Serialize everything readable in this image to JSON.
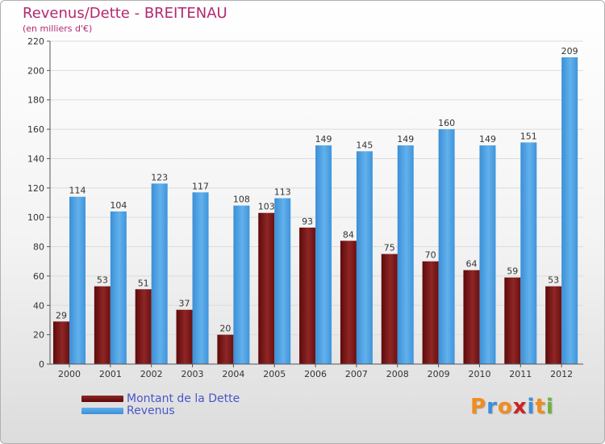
{
  "header": {
    "title": "Revenus/Dette - BREITENAU",
    "subtitle": "(en milliers d'€)"
  },
  "chart_data": {
    "type": "bar",
    "categories": [
      "2000",
      "2001",
      "2002",
      "2003",
      "2004",
      "2005",
      "2006",
      "2007",
      "2008",
      "2009",
      "2010",
      "2011",
      "2012"
    ],
    "series": [
      {
        "name": "Montant de la Dette",
        "color": "#7a1212",
        "values": [
          29,
          53,
          51,
          37,
          20,
          103,
          93,
          84,
          75,
          70,
          64,
          59,
          53
        ]
      },
      {
        "name": "Revenus",
        "color": "#4ea3e2",
        "values": [
          114,
          104,
          123,
          117,
          108,
          113,
          149,
          145,
          149,
          160,
          149,
          151,
          209
        ]
      }
    ],
    "ylim": [
      0,
      220
    ],
    "yticks": [
      0,
      20,
      40,
      60,
      80,
      100,
      120,
      140,
      160,
      180,
      200,
      220
    ],
    "grid": true,
    "legend": "bottom-left"
  },
  "logo": {
    "text": "Proxiti",
    "colors": [
      "#f28c1e",
      "#3f8ed8",
      "#f28c1e",
      "#cc2222",
      "#3f8ed8",
      "#f28c1e",
      "#6db33f"
    ]
  }
}
